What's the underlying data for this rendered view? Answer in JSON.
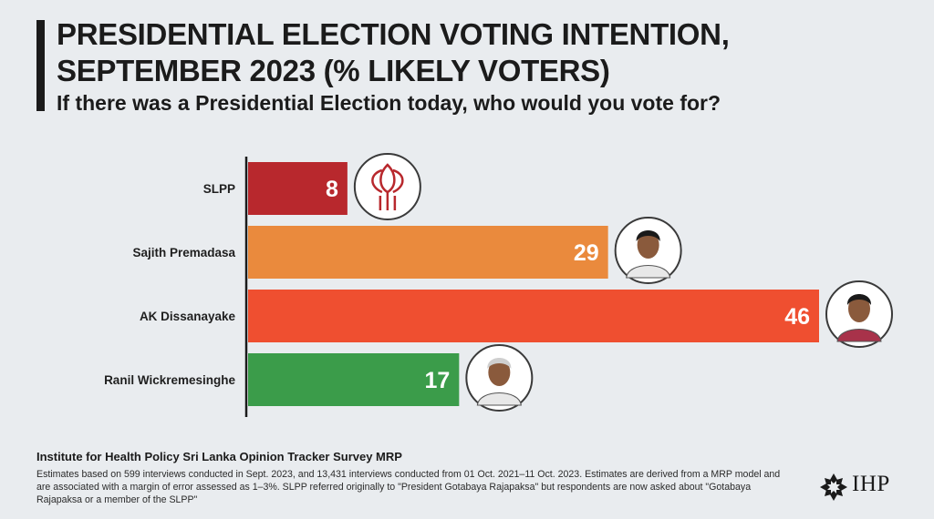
{
  "header": {
    "title_line1": "PRESIDENTIAL ELECTION VOTING INTENTION,",
    "title_line2": "SEPTEMBER 2023 (% LIKELY VOTERS)",
    "subtitle": "If there was a Presidential Election today, who would you vote for?"
  },
  "chart_data": {
    "type": "bar",
    "orientation": "horizontal",
    "title": "PRESIDENTIAL ELECTION VOTING INTENTION, SEPTEMBER 2023 (% LIKELY VOTERS)",
    "subtitle": "If there was a Presidential Election today, who would you vote for?",
    "categories": [
      "SLPP",
      "Sajith Premadasa",
      "AK Dissanayake",
      "Ranil Wickremesinghe"
    ],
    "values": [
      8,
      29,
      46,
      17
    ],
    "colors": [
      "#b8282d",
      "#ea8a3d",
      "#ef4f30",
      "#3b9c4a"
    ],
    "icons": [
      "slpp-lotus-logo",
      "candidate-photo",
      "candidate-photo",
      "candidate-photo"
    ],
    "xlim": [
      0,
      46
    ],
    "data_labels": true,
    "grid": false,
    "legend": "none"
  },
  "footer": {
    "source_title": "Institute for Health Policy Sri Lanka Opinion Tracker Survey MRP",
    "source_note": "Estimates based on 599 interviews conducted in Sept. 2023, and 13,431 interviews conducted from 01 Oct. 2021–11 Oct. 2023. Estimates are derived from a MRP model and are associated with a margin of error assessed as 1–3%. SLPP referred originally to \"President Gotabaya Rajapaksa\" but respondents are now asked about \"Gotabaya Rajapaksa or a member of the SLPP\"",
    "logo_text": "IHP"
  }
}
